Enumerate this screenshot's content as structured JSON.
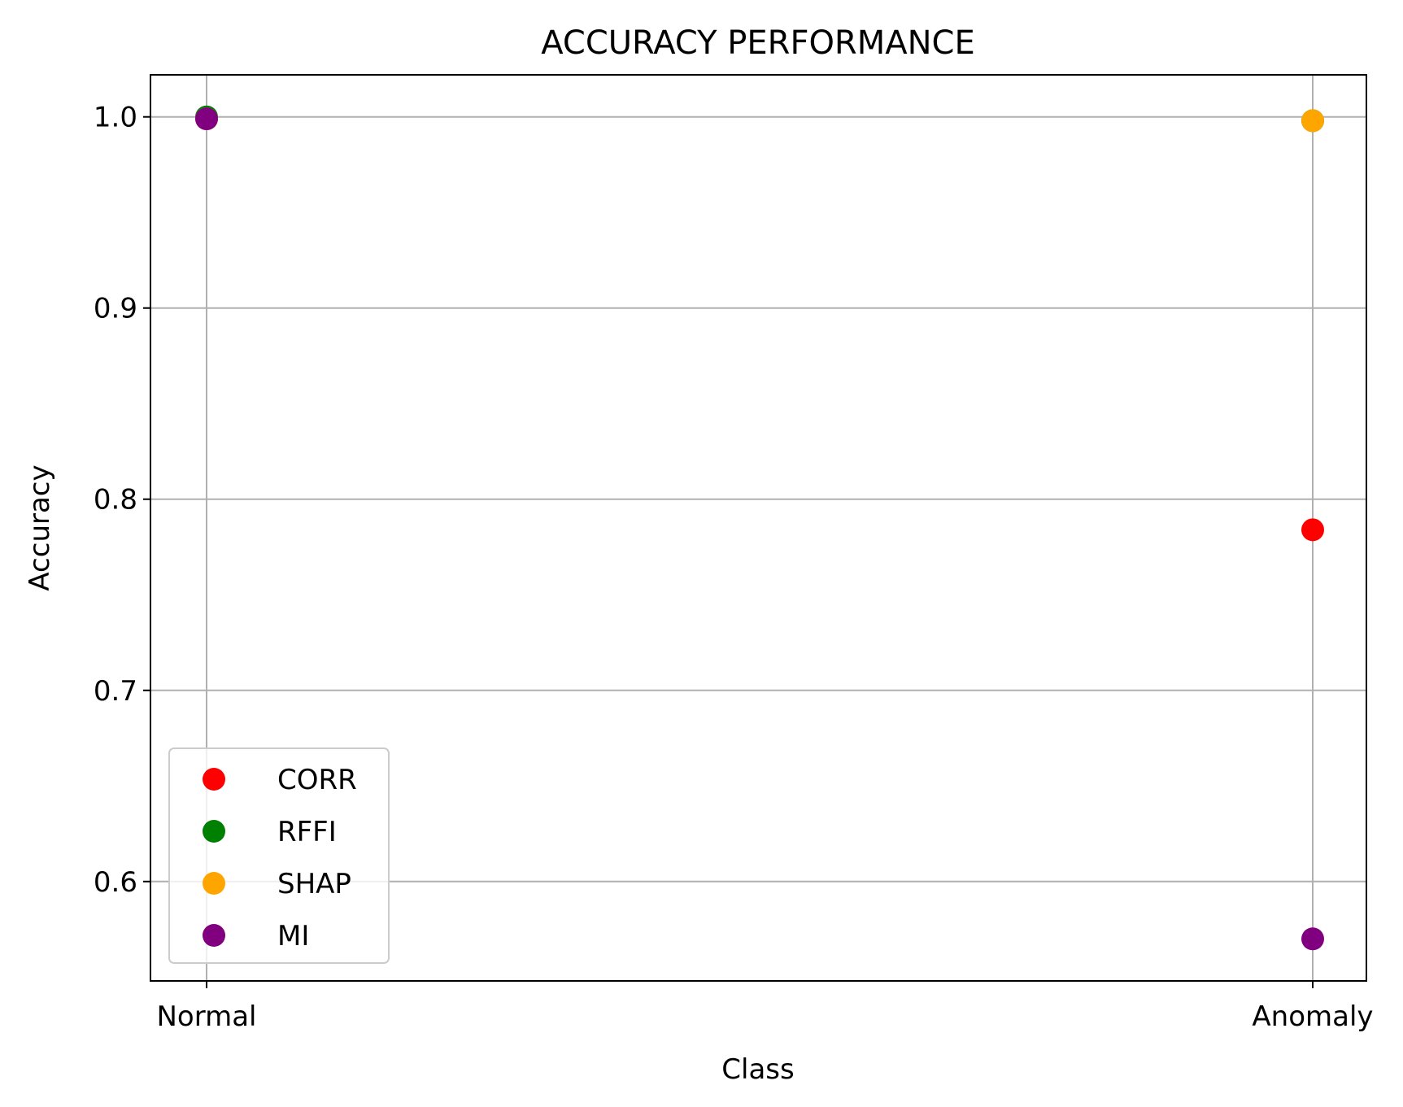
{
  "chart_data": {
    "type": "scatter",
    "title": "ACCURACY PERFORMANCE",
    "xlabel": "Class",
    "ylabel": "Accuracy",
    "categories": [
      "Normal",
      "Anomaly"
    ],
    "ylim": [
      0.548,
      1.022
    ],
    "yticks": [
      "0.6",
      "0.7",
      "0.8",
      "0.9",
      "1.0"
    ],
    "ytick_values": [
      0.6,
      0.7,
      0.8,
      0.9,
      1.0
    ],
    "grid": true,
    "legend_position": "lower-left",
    "series": [
      {
        "name": "CORR",
        "color": "#ff0000",
        "values": [
          0.999,
          0.784
        ]
      },
      {
        "name": "RFFI",
        "color": "#008000",
        "values": [
          1.0,
          0.998
        ]
      },
      {
        "name": "SHAP",
        "color": "#ffa500",
        "values": [
          0.999,
          0.998
        ]
      },
      {
        "name": "MI",
        "color": "#800080",
        "values": [
          0.999,
          0.57
        ]
      }
    ]
  }
}
